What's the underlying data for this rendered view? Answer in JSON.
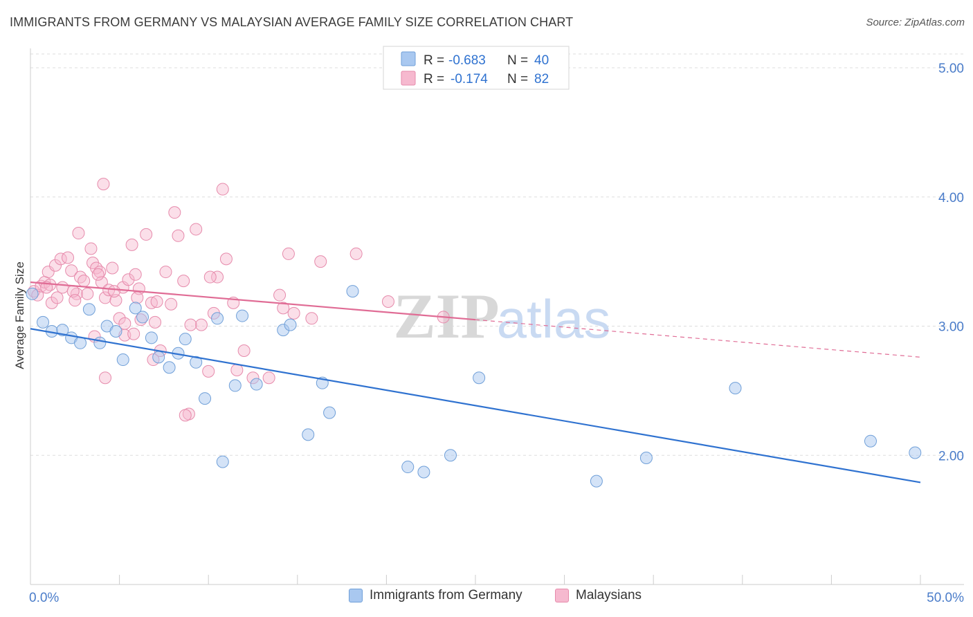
{
  "header": {
    "title": "IMMIGRANTS FROM GERMANY VS MALAYSIAN AVERAGE FAMILY SIZE CORRELATION CHART",
    "source": "Source: ZipAtlas.com"
  },
  "watermark": {
    "zip": "ZIP",
    "atlas": "atlas"
  },
  "legend_stats": [
    {
      "r_label": "R =",
      "r_value": "-0.683",
      "n_label": "N =",
      "n_value": "40"
    },
    {
      "r_label": "R =",
      "r_value": "-0.174",
      "n_label": "N =",
      "n_value": "82"
    }
  ],
  "colors": {
    "germany_fill": "#a9c8f0",
    "germany_stroke": "#6f9fd8",
    "germany_line": "#2f72d0",
    "malaysia_fill": "#f6b9cf",
    "malaysia_stroke": "#e68aab",
    "malaysia_line": "#e06c95",
    "tick_text": "#4a7cc9",
    "grid": "#dddddd"
  },
  "chart_data": {
    "type": "scatter",
    "title": "IMMIGRANTS FROM GERMANY VS MALAYSIAN AVERAGE FAMILY SIZE CORRELATION CHART",
    "xlabel": "",
    "ylabel": "Average Family Size",
    "xlim": [
      0,
      50
    ],
    "ylim": [
      1.0,
      5.15
    ],
    "x_tick_labels": [
      "0.0%",
      "50.0%"
    ],
    "y_ticks": [
      2.0,
      3.0,
      4.0,
      5.0
    ],
    "y_tick_labels": [
      "2.00",
      "3.00",
      "4.00",
      "5.00"
    ],
    "grid": true,
    "legend": "top-center and bottom",
    "series": [
      {
        "name": "Immigrants from Germany",
        "trend": {
          "x": [
            0,
            50
          ],
          "y": [
            2.98,
            1.79
          ],
          "dashed_from": null
        },
        "points": [
          [
            0.1,
            3.25
          ],
          [
            0.7,
            3.03
          ],
          [
            1.2,
            2.96
          ],
          [
            1.8,
            2.97
          ],
          [
            2.3,
            2.91
          ],
          [
            2.8,
            2.87
          ],
          [
            3.3,
            3.13
          ],
          [
            3.9,
            2.87
          ],
          [
            4.3,
            3.0
          ],
          [
            4.8,
            2.96
          ],
          [
            5.2,
            2.74
          ],
          [
            5.9,
            3.14
          ],
          [
            6.3,
            3.07
          ],
          [
            6.8,
            2.91
          ],
          [
            7.2,
            2.76
          ],
          [
            7.8,
            2.68
          ],
          [
            8.3,
            2.79
          ],
          [
            8.7,
            2.9
          ],
          [
            9.3,
            2.72
          ],
          [
            9.8,
            2.44
          ],
          [
            10.5,
            3.06
          ],
          [
            10.8,
            1.95
          ],
          [
            11.5,
            2.54
          ],
          [
            11.9,
            3.08
          ],
          [
            12.7,
            2.55
          ],
          [
            14.2,
            2.97
          ],
          [
            14.6,
            3.01
          ],
          [
            15.6,
            2.16
          ],
          [
            16.4,
            2.56
          ],
          [
            16.8,
            2.33
          ],
          [
            18.1,
            3.27
          ],
          [
            21.2,
            1.91
          ],
          [
            22.1,
            1.87
          ],
          [
            23.6,
            2.0
          ],
          [
            25.2,
            2.6
          ],
          [
            34.6,
            1.98
          ],
          [
            31.8,
            1.8
          ],
          [
            39.6,
            2.52
          ],
          [
            47.2,
            2.11
          ],
          [
            49.7,
            2.02
          ]
        ]
      },
      {
        "name": "Malaysians",
        "trend": {
          "x": [
            0,
            50
          ],
          "y": [
            3.34,
            2.76
          ],
          "dashed_from": 25
        },
        "points": [
          [
            0.2,
            3.27
          ],
          [
            0.4,
            3.24
          ],
          [
            0.6,
            3.31
          ],
          [
            0.8,
            3.34
          ],
          [
            1.0,
            3.42
          ],
          [
            1.2,
            3.18
          ],
          [
            1.4,
            3.47
          ],
          [
            1.5,
            3.22
          ],
          [
            1.8,
            3.3
          ],
          [
            1.7,
            3.52
          ],
          [
            2.1,
            3.53
          ],
          [
            2.3,
            3.43
          ],
          [
            2.6,
            3.25
          ],
          [
            2.8,
            3.38
          ],
          [
            2.4,
            3.27
          ],
          [
            3.0,
            3.35
          ],
          [
            3.2,
            3.25
          ],
          [
            3.4,
            3.6
          ],
          [
            3.5,
            3.49
          ],
          [
            3.7,
            3.45
          ],
          [
            3.9,
            3.42
          ],
          [
            4.0,
            3.34
          ],
          [
            4.2,
            3.22
          ],
          [
            4.4,
            3.28
          ],
          [
            4.6,
            3.45
          ],
          [
            4.8,
            3.2
          ],
          [
            5.0,
            3.06
          ],
          [
            5.2,
            3.3
          ],
          [
            5.3,
            3.02
          ],
          [
            5.5,
            3.36
          ],
          [
            5.7,
            3.63
          ],
          [
            5.9,
            3.4
          ],
          [
            6.1,
            3.29
          ],
          [
            6.2,
            3.05
          ],
          [
            6.5,
            3.71
          ],
          [
            6.8,
            3.18
          ],
          [
            7.0,
            3.03
          ],
          [
            7.3,
            2.81
          ],
          [
            7.6,
            3.42
          ],
          [
            7.9,
            3.17
          ],
          [
            8.1,
            3.88
          ],
          [
            8.3,
            3.7
          ],
          [
            8.6,
            3.35
          ],
          [
            8.9,
            2.32
          ],
          [
            9.3,
            3.75
          ],
          [
            9.6,
            3.01
          ],
          [
            10.0,
            2.65
          ],
          [
            10.3,
            3.1
          ],
          [
            10.5,
            3.38
          ],
          [
            10.8,
            4.06
          ],
          [
            11.0,
            3.52
          ],
          [
            11.4,
            3.18
          ],
          [
            11.6,
            2.66
          ],
          [
            12.0,
            2.81
          ],
          [
            13.4,
            2.6
          ],
          [
            14.0,
            3.24
          ],
          [
            14.2,
            3.14
          ],
          [
            14.5,
            3.56
          ],
          [
            14.8,
            3.1
          ],
          [
            15.8,
            3.06
          ],
          [
            16.3,
            3.5
          ],
          [
            18.3,
            3.56
          ],
          [
            20.1,
            3.19
          ],
          [
            23.2,
            3.07
          ],
          [
            4.1,
            4.1
          ],
          [
            5.3,
            2.93
          ],
          [
            2.7,
            3.72
          ],
          [
            3.6,
            2.92
          ],
          [
            6.9,
            2.74
          ],
          [
            4.2,
            2.6
          ],
          [
            9.0,
            3.01
          ],
          [
            1.1,
            3.32
          ],
          [
            3.8,
            3.4
          ],
          [
            5.8,
            2.94
          ],
          [
            7.1,
            3.19
          ],
          [
            8.7,
            2.31
          ],
          [
            10.1,
            3.38
          ],
          [
            12.5,
            2.6
          ],
          [
            0.9,
            3.3
          ],
          [
            2.5,
            3.2
          ],
          [
            4.7,
            3.27
          ],
          [
            6.0,
            3.22
          ]
        ]
      }
    ]
  },
  "bottom_legend": [
    {
      "label": "Immigrants from Germany"
    },
    {
      "label": "Malaysians"
    }
  ]
}
